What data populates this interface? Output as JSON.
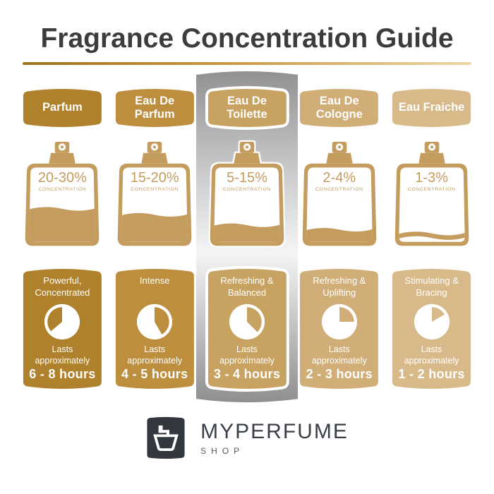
{
  "title": "Fragrance Concentration Guide",
  "lasts_label": "Lasts approximately",
  "concentration_caption": "CONCENTRATION",
  "colors": {
    "title_text": "#3c3c3e",
    "underline": [
      "#9c741e",
      "#c79944",
      "#ecd6a8"
    ],
    "bottle_gold": "#c49c5e",
    "strip_gray": [
      "#919193",
      "#c9c9cb",
      "#f5f5f6",
      "#bcbcbe",
      "#8f8f91"
    ],
    "logo_bg": "#33383f",
    "brand_text": "#3a3f47"
  },
  "columns": [
    {
      "label": "Parfum",
      "concentration": "20-30%",
      "character": "Powerful, Concentrated",
      "duration": "6 - 8 hours",
      "highlighted": false,
      "colors": {
        "header": "#b0812c",
        "panel": "#b0812c"
      },
      "bottle": {
        "fill_level": 0.45,
        "liquid_style": "fill"
      },
      "pie": {
        "start_deg": 230,
        "end_deg": 360
      }
    },
    {
      "label": "Eau De Parfum",
      "concentration": "15-20%",
      "character": "Intense",
      "duration": "4 - 5 hours",
      "highlighted": false,
      "colors": {
        "header": "#bd8e3d",
        "panel": "#bd8e3d"
      },
      "bottle": {
        "fill_level": 0.37,
        "liquid_style": "fill"
      },
      "pie": {
        "start_deg": 0,
        "end_deg": 150
      }
    },
    {
      "label": "Eau De Toilette",
      "concentration": "5-15%",
      "character": "Refreshing & Balanced",
      "duration": "3 - 4 hours",
      "highlighted": true,
      "colors": {
        "header": "#c8a260",
        "panel": "#c8a260"
      },
      "bottle": {
        "fill_level": 0.23,
        "liquid_style": "fill"
      },
      "pie": {
        "start_deg": 0,
        "end_deg": 135
      }
    },
    {
      "label": "Eau De Cologne",
      "concentration": "2-4%",
      "character": "Refreshing & Uplifting",
      "duration": "2 - 3 hours",
      "highlighted": false,
      "colors": {
        "header": "#d1ad77",
        "panel": "#d1ad77"
      },
      "bottle": {
        "fill_level": 0.17,
        "liquid_style": "fill"
      },
      "pie": {
        "start_deg": 0,
        "end_deg": 90
      }
    },
    {
      "label": "Eau Fraiche",
      "concentration": "1-3%",
      "character": "Stimulating & Bracing",
      "duration": "1 - 2 hours",
      "highlighted": false,
      "colors": {
        "header": "#d8ba8a",
        "panel": "#d8ba8a"
      },
      "bottle": {
        "fill_level": 0.12,
        "liquid_style": "line"
      },
      "pie": {
        "start_deg": 0,
        "end_deg": 60
      }
    }
  ],
  "footer": {
    "brand": "MYPERFUME",
    "sub": "SHOP"
  }
}
